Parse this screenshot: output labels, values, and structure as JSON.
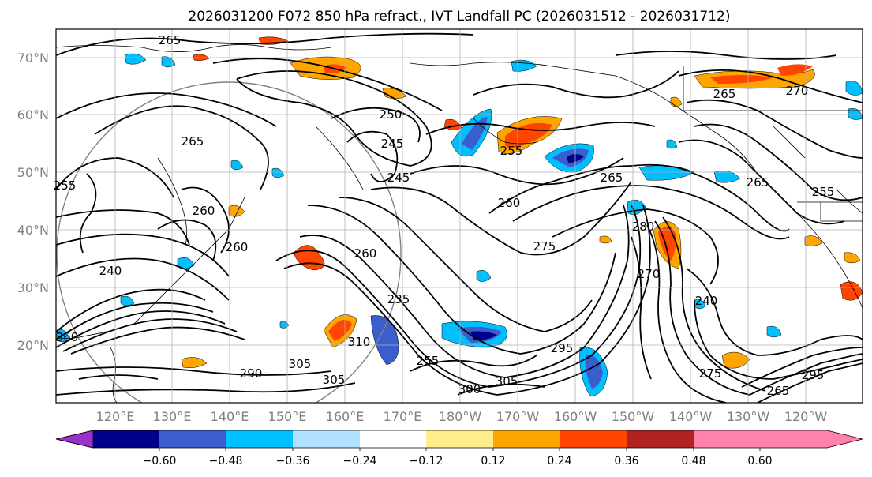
{
  "title": "2026031200 F072 850 hPa refract., IVT Landfall PC (2026031512 - 2026031712)",
  "lat_labels": [
    "70°N",
    "60°N",
    "50°N",
    "40°N",
    "30°N",
    "20°N"
  ],
  "lon_labels": [
    "120°E",
    "130°E",
    "140°E",
    "150°E",
    "160°E",
    "170°E",
    "180°W",
    "170°W",
    "160°W",
    "150°W",
    "140°W",
    "130°W",
    "120°W"
  ],
  "colorbar": {
    "ticks": [
      "−0.60",
      "−0.48",
      "−0.36",
      "−0.24",
      "−0.12",
      "0.12",
      "0.24",
      "0.36",
      "0.48",
      "0.60"
    ],
    "colors": [
      "#9932cc",
      "#00008b",
      "#3a5fcd",
      "#00bfff",
      "#b0e2ff",
      "#ffffff",
      "#ffec8b",
      "#ffa500",
      "#ff4500",
      "#b22222",
      "#ff82ab"
    ]
  },
  "contour_labels": [
    "265",
    "250",
    "245",
    "245",
    "265",
    "255",
    "260",
    "265",
    "255",
    "260",
    "260",
    "275",
    "280",
    "270",
    "270",
    "265",
    "240",
    "260",
    "235",
    "310",
    "305",
    "290",
    "300",
    "305",
    "295",
    "275",
    "240",
    "255",
    "305",
    "295",
    "255",
    "265",
    "360",
    "265"
  ]
}
